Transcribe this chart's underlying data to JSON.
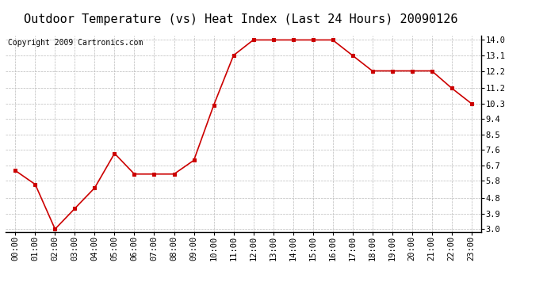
{
  "title": "Outdoor Temperature (vs) Heat Index (Last 24 Hours) 20090126",
  "copyright": "Copyright 2009 Cartronics.com",
  "x_labels": [
    "00:00",
    "01:00",
    "02:00",
    "03:00",
    "04:00",
    "05:00",
    "06:00",
    "07:00",
    "08:00",
    "09:00",
    "10:00",
    "11:00",
    "12:00",
    "13:00",
    "14:00",
    "15:00",
    "16:00",
    "17:00",
    "18:00",
    "19:00",
    "20:00",
    "21:00",
    "22:00",
    "23:00"
  ],
  "y_values": [
    6.4,
    5.6,
    3.0,
    4.2,
    5.4,
    7.4,
    6.2,
    6.2,
    6.2,
    7.0,
    10.2,
    13.1,
    14.0,
    14.0,
    14.0,
    14.0,
    14.0,
    13.1,
    12.2,
    12.2,
    12.2,
    12.2,
    11.2,
    10.3
  ],
  "line_color": "#cc0000",
  "marker": "s",
  "marker_size": 3,
  "marker_color": "#cc0000",
  "bg_color": "#ffffff",
  "grid_color": "#bbbbbb",
  "y_min": 3.0,
  "y_max": 14.0,
  "y_ticks": [
    3.0,
    3.9,
    4.8,
    5.8,
    6.7,
    7.6,
    8.5,
    9.4,
    10.3,
    11.2,
    12.2,
    13.1,
    14.0
  ],
  "title_fontsize": 11,
  "tick_fontsize": 7.5,
  "copyright_fontsize": 7
}
